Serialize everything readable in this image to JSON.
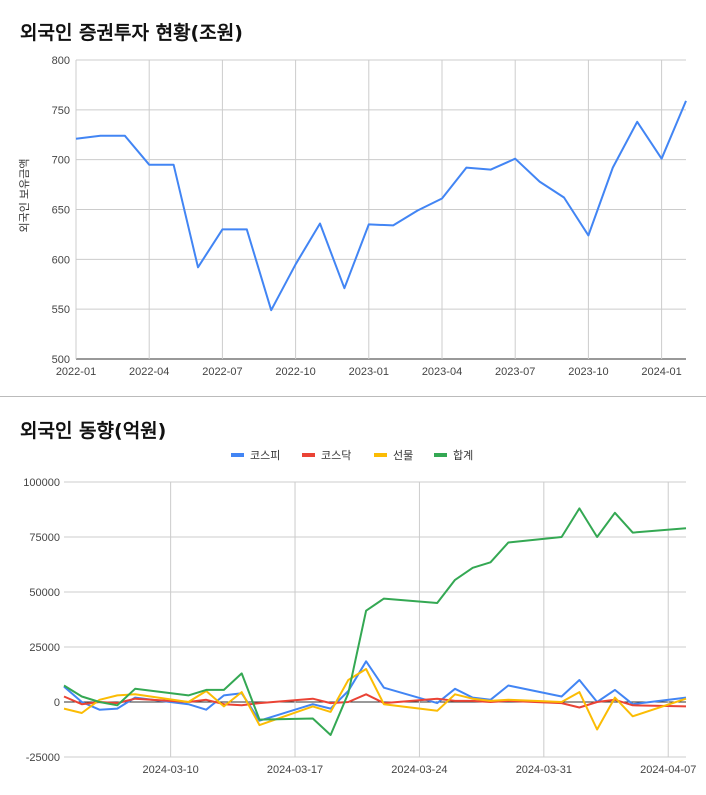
{
  "charts": {
    "holdings_title": "외국인 증권투자 현황(조원)",
    "flows_title": "외국인 동향(억원)"
  },
  "chart_data": [
    {
      "type": "line",
      "title": "외국인 증권투자 현황(조원)",
      "ylabel": "외국인 보유금액",
      "xlabel": "",
      "ylim": [
        500,
        800
      ],
      "yticks": [
        500,
        550,
        600,
        650,
        700,
        750,
        800
      ],
      "xticks": [
        "2022-01",
        "2022-04",
        "2022-07",
        "2022-10",
        "2023-01",
        "2023-04",
        "2023-07",
        "2023-10",
        "2024-01"
      ],
      "grid": true,
      "x": [
        "2022-01",
        "2022-02",
        "2022-03",
        "2022-04",
        "2022-05",
        "2022-06",
        "2022-07",
        "2022-08",
        "2022-09",
        "2022-10",
        "2022-11",
        "2022-12",
        "2023-01",
        "2023-02",
        "2023-03",
        "2023-04",
        "2023-05",
        "2023-06",
        "2023-07",
        "2023-08",
        "2023-09",
        "2023-10",
        "2023-11",
        "2023-12",
        "2024-01",
        "2024-02"
      ],
      "series": [
        {
          "color": "#4285f4",
          "values": [
            721,
            724,
            724,
            695,
            695,
            592,
            630,
            630,
            549,
            595,
            636,
            571,
            635,
            634,
            649,
            661,
            692,
            690,
            701,
            678,
            662,
            624,
            692,
            738,
            701,
            759
          ]
        }
      ]
    },
    {
      "type": "line",
      "title": "외국인 동향(억원)",
      "xlabel": "",
      "ylabel": "",
      "ylim": [
        -25000,
        100000
      ],
      "yticks": [
        -25000,
        0,
        25000,
        50000,
        75000,
        100000
      ],
      "xticks": [
        "2024-03-10",
        "2024-03-17",
        "2024-03-24",
        "2024-03-31",
        "2024-04-07"
      ],
      "legend": "top",
      "grid": true,
      "x": [
        "2024-03-04",
        "2024-03-05",
        "2024-03-06",
        "2024-03-07",
        "2024-03-08",
        "2024-03-11",
        "2024-03-12",
        "2024-03-13",
        "2024-03-14",
        "2024-03-15",
        "2024-03-18",
        "2024-03-19",
        "2024-03-20",
        "2024-03-21",
        "2024-03-22",
        "2024-03-25",
        "2024-03-26",
        "2024-03-27",
        "2024-03-28",
        "2024-03-29",
        "2024-04-01",
        "2024-04-02",
        "2024-04-03",
        "2024-04-04",
        "2024-04-05",
        "2024-04-08"
      ],
      "series": [
        {
          "name": "코스피",
          "color": "#4285f4",
          "values": [
            7000,
            0,
            -3500,
            -3000,
            2000,
            -1000,
            -3500,
            3000,
            4000,
            -8500,
            -1000,
            -3000,
            5000,
            18500,
            6500,
            -500,
            6000,
            2000,
            1000,
            7500,
            2500,
            10000,
            0,
            5500,
            -1000,
            2000
          ]
        },
        {
          "name": "코스닥",
          "color": "#ea4335",
          "values": [
            2500,
            -1000,
            0,
            -500,
            1500,
            0,
            1000,
            -1000,
            -1500,
            -500,
            1500,
            -500,
            0,
            3500,
            -500,
            1500,
            500,
            500,
            0,
            500,
            -500,
            -2500,
            0,
            1000,
            -1500,
            -2000
          ]
        },
        {
          "name": "선물",
          "color": "#fbbc04",
          "values": [
            -3000,
            -5000,
            1000,
            3000,
            3500,
            0,
            5000,
            -2000,
            4500,
            -10500,
            -2000,
            -4500,
            10000,
            15000,
            -1000,
            -4000,
            3500,
            1500,
            500,
            1000,
            0,
            4500,
            -12500,
            2000,
            -6500,
            1500
          ]
        },
        {
          "name": "합계",
          "color": "#34a853",
          "values": [
            7500,
            2500,
            0,
            -1500,
            6000,
            3000,
            5500,
            5500,
            13000,
            -8000,
            -7500,
            -15000,
            4000,
            41500,
            47000,
            45000,
            55500,
            61000,
            63500,
            72500,
            75000,
            88000,
            75000,
            86000,
            77000,
            79000
          ]
        }
      ]
    }
  ]
}
